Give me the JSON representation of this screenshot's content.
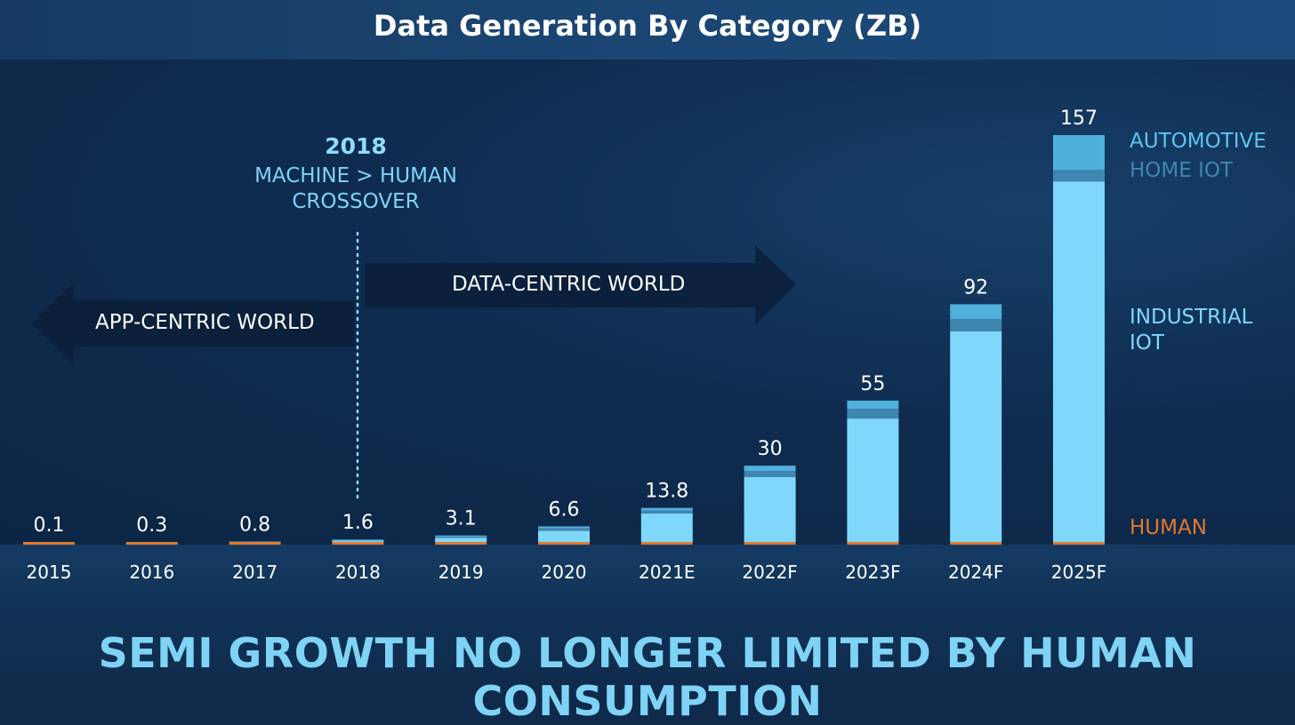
{
  "title": "Data Generation By Category (ZB)",
  "headline": "SEMI GROWTH NO LONGER LIMITED BY HUMAN CONSUMPTION",
  "callout": {
    "year": "2018",
    "line1": "MACHINE > HUMAN",
    "line2": "CROSSOVER"
  },
  "arrows": {
    "app_centric": "APP-CENTRIC WORLD",
    "data_centric": "DATA-CENTRIC WORLD"
  },
  "legend": {
    "automotive": "AUTOMOTIVE",
    "home_iot": "HOME IOT",
    "industrial_line1": "INDUSTRIAL",
    "industrial_line2": "IOT",
    "human": "HUMAN"
  },
  "colors": {
    "industrial": "#7fd8fb",
    "home_iot": "#3f86b0",
    "automotive": "#4fb0dc",
    "human": "#e07a2e",
    "headline": "#7fd3f5"
  },
  "chart_data": {
    "type": "bar",
    "stacked": true,
    "title": "Data Generation By Category (ZB)",
    "categories": [
      "2015",
      "2016",
      "2017",
      "2018",
      "2019",
      "2020",
      "2021E",
      "2022F",
      "2023F",
      "2024F",
      "2025F"
    ],
    "totals": [
      0.1,
      0.3,
      0.8,
      1.6,
      3.1,
      6.6,
      13.8,
      30,
      55,
      92,
      157
    ],
    "total_labels": [
      "0.1",
      "0.3",
      "0.8",
      "1.6",
      "3.1",
      "6.6",
      "13.8",
      "30",
      "55",
      "92",
      "157"
    ],
    "series": [
      {
        "name": "HUMAN",
        "color": "#e07a2e",
        "values": [
          0.1,
          0.3,
          0.6,
          0.6,
          0.6,
          0.6,
          0.7,
          0.7,
          0.7,
          0.7,
          0.7
        ]
      },
      {
        "name": "INDUSTRIAL IOT",
        "color": "#7fd8fb",
        "values": [
          0,
          0,
          0.1,
          0.6,
          1.6,
          4.3,
          11.0,
          25.0,
          47.4,
          80.9,
          138.5
        ]
      },
      {
        "name": "HOME IOT",
        "color": "#3f86b0",
        "values": [
          0,
          0,
          0.05,
          0.2,
          0.45,
          0.9,
          1.1,
          2.3,
          3.7,
          4.7,
          4.4
        ]
      },
      {
        "name": "AUTOMOTIVE",
        "color": "#4fb0dc",
        "values": [
          0,
          0,
          0.05,
          0.2,
          0.45,
          0.8,
          1.0,
          2.0,
          3.2,
          5.7,
          13.4
        ]
      }
    ],
    "ylim": [
      0,
      157
    ],
    "annotation": "2018 MACHINE > HUMAN CROSSOVER"
  }
}
